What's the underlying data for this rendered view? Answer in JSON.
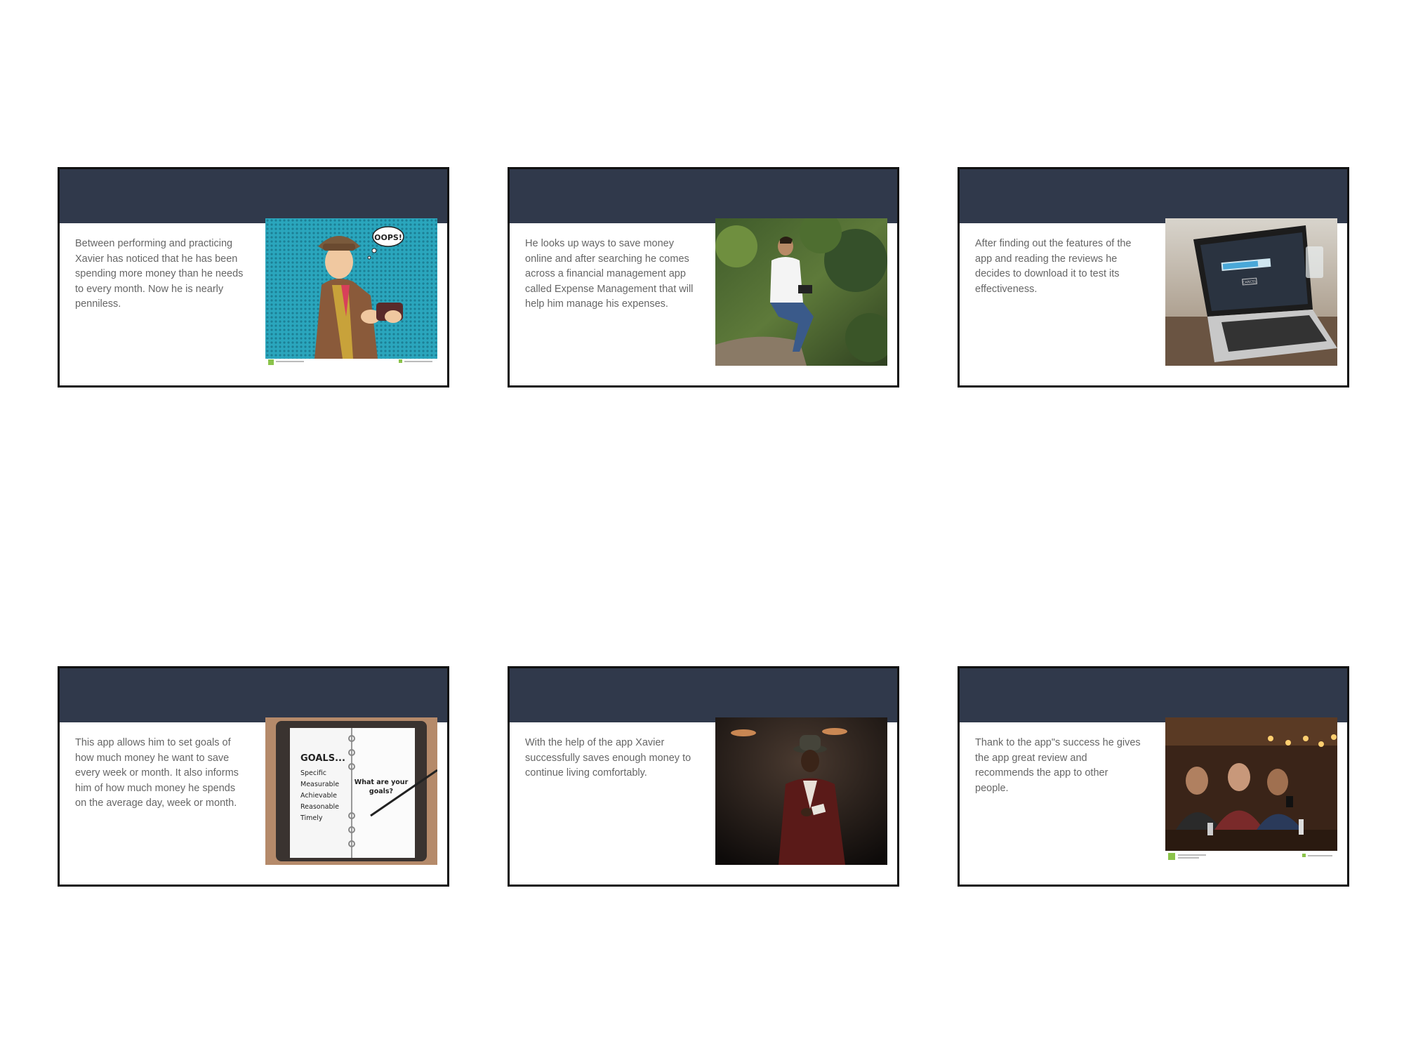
{
  "slides": [
    {
      "text": "Between performing and practicing Xavier has noticed that he has been spending more money than he needs to every month. Now he is nearly penniless.",
      "image": "pop-art-man-empty-wallet-illustration",
      "image_text": "OOPS!"
    },
    {
      "text": "He looks up ways to save money online and after searching he comes across a financial management app called Expense Management that will help him manage his expenses.",
      "image": "man-sitting-outdoors-using-tablet-photo"
    },
    {
      "text": "After finding out the features of the app and reading the reviews he decides to download it to test its effectiveness.",
      "image": "laptop-download-progress-photo",
      "image_text": "CANCEL"
    },
    {
      "text": "This app allows him to set goals of how much money he want to save every week or month. It also informs him of how much money he spends on the average day, week or month.",
      "image": "smart-goals-notebook-photo",
      "image_goals": {
        "heading": "GOALS...",
        "items": [
          "Specific",
          "Measurable",
          "Achievable",
          "Reasonable",
          "Timely"
        ],
        "question_line1": "What are your",
        "question_line2": "goals?"
      }
    },
    {
      "text": "With the help of the app Xavier successfully saves enough money to continue living comfortably.",
      "image": "well-dressed-man-with-money-photo"
    },
    {
      "text": "Thank to the app\"s success he gives the app great review and recommends the app to other people.",
      "image": "friends-at-bar-looking-at-phone-photo"
    }
  ],
  "colors": {
    "header": "#30394b",
    "text": "#666666",
    "border": "#111111"
  }
}
